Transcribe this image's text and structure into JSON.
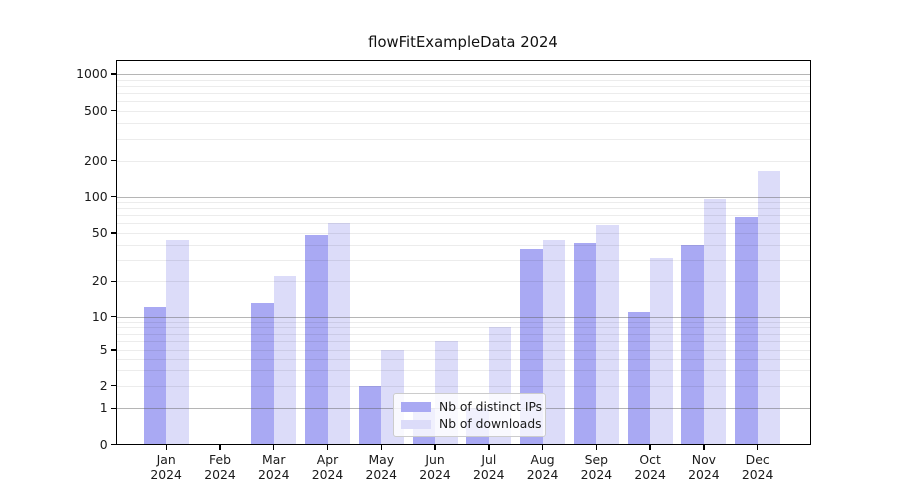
{
  "chart_data": {
    "type": "bar",
    "title": "flowFitExampleData 2024",
    "months": [
      "Jan",
      "Feb",
      "Mar",
      "Apr",
      "May",
      "Jun",
      "Jul",
      "Aug",
      "Sep",
      "Oct",
      "Nov",
      "Dec"
    ],
    "x_tick_year": "2024",
    "series": [
      {
        "name": "Nb of distinct IPs",
        "color": "#a9a9f3",
        "values": [
          12,
          0,
          13,
          48,
          2,
          1,
          1,
          37,
          41,
          11,
          40,
          68
        ]
      },
      {
        "name": "Nb of downloads",
        "color": "#dcdcf9",
        "values": [
          44,
          0,
          22,
          60,
          5,
          6,
          8,
          44,
          58,
          31,
          95,
          165
        ]
      }
    ],
    "yscale": "symlog",
    "yticks": [
      0,
      1,
      2,
      5,
      10,
      20,
      50,
      100,
      200,
      500,
      1000
    ],
    "ylim": [
      0,
      1300
    ],
    "grid": true,
    "legend_position": "lower center"
  },
  "colors": {
    "bar_distinct_ips": "#a9a9f3",
    "bar_downloads": "#dcdcf9",
    "grid_major": "#c6c6c6",
    "grid_minor": "#ebebeb",
    "axis": "#000000",
    "text": "#1a1a1a",
    "legend_border": "#cccccc"
  }
}
